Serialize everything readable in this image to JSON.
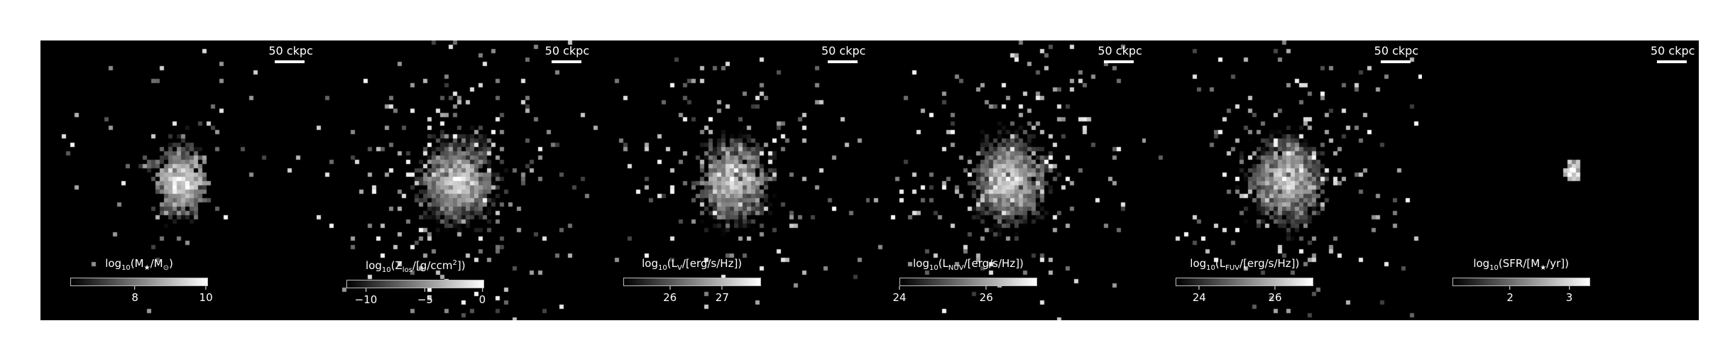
{
  "scale_bar_label": "50 ckpc",
  "panels": [
    {
      "id": "stellar-mass",
      "scale": "50 ckpc",
      "label_parts": [
        "log",
        "10",
        "(M",
        "★",
        "/M",
        "⊙",
        ")"
      ],
      "ticks": [
        {
          "text": "8",
          "frac": 0.47
        },
        {
          "text": "10",
          "frac": 0.985
        }
      ],
      "noise": 0.25,
      "spread": 24,
      "density": 0.6
    },
    {
      "id": "metallicity",
      "scale": "50 ckpc",
      "label_parts": [
        "log",
        "10",
        "(Z",
        "los",
        "/[g/ccm",
        "2",
        "])"
      ],
      "ticks": [
        {
          "text": "−10",
          "frac": 0.14
        },
        {
          "text": "−5",
          "frac": 0.57
        },
        {
          "text": "0",
          "frac": 0.985
        }
      ],
      "noise": 0.9,
      "spread": 40,
      "density": 1.0
    },
    {
      "id": "v-band",
      "scale": "50 ckpc",
      "label_parts": [
        "log",
        "10",
        "(L",
        "V",
        "/[erg/s/Hz])"
      ],
      "ticks": [
        {
          "text": "26",
          "frac": 0.34
        },
        {
          "text": "27",
          "frac": 0.72
        }
      ],
      "noise": 0.7,
      "spread": 34,
      "density": 0.9
    },
    {
      "id": "nuv-band",
      "scale": "50 ckpc",
      "label_parts": [
        "log",
        "10",
        "(L",
        "NUV",
        "/[erg/s/Hz])"
      ],
      "ticks": [
        {
          "text": "24",
          "frac": 0.0
        },
        {
          "text": "26",
          "frac": 0.63
        }
      ],
      "noise": 0.85,
      "spread": 38,
      "density": 1.0
    },
    {
      "id": "fuv-band",
      "scale": "50 ckpc",
      "label_parts": [
        "log",
        "10",
        "(L",
        "FUV",
        "/[erg/s/Hz])"
      ],
      "ticks": [
        {
          "text": "24",
          "frac": 0.17
        },
        {
          "text": "26",
          "frac": 0.72
        }
      ],
      "noise": 0.85,
      "spread": 38,
      "density": 1.0
    },
    {
      "id": "sfr",
      "scale": "50 ckpc",
      "label_parts": [
        "log",
        "10",
        "(SFR/[M",
        "★",
        "/yr])"
      ],
      "ticks": [
        {
          "text": "2",
          "frac": 0.42
        },
        {
          "text": "3",
          "frac": 0.85
        }
      ],
      "noise": 0.0,
      "spread": 6,
      "density": 0.15
    }
  ]
}
